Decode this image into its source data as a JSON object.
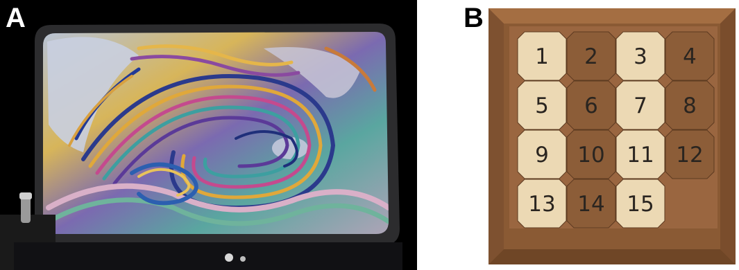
{
  "panels": {
    "a": {
      "label": "A"
    },
    "b": {
      "label": "B"
    }
  },
  "puzzle": {
    "tiles": [
      "1",
      "2",
      "3",
      "4",
      "5",
      "6",
      "7",
      "8",
      "9",
      "10",
      "11",
      "12",
      "13",
      "14",
      "15"
    ],
    "wood_tones": [
      "light",
      "dark",
      "light",
      "dark",
      "light",
      "dark",
      "light",
      "dark",
      "light",
      "dark",
      "light",
      "dark",
      "light",
      "dark",
      "light"
    ]
  },
  "colors": {
    "frame": "#8a5a34",
    "light_wood": "#ecd9b4",
    "dark_wood": "#8c5d38",
    "tray": "#9a6640"
  }
}
